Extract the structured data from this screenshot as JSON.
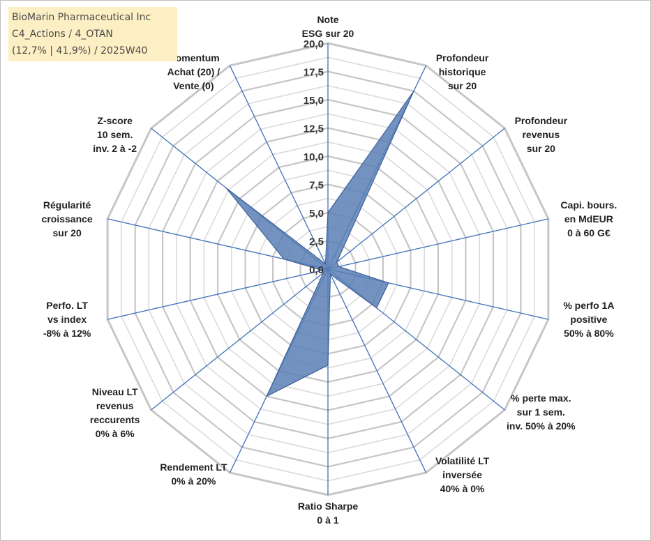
{
  "chart_data": {
    "type": "radar",
    "title_lines": [
      "BioMarin Pharmaceutical Inc",
      "C4_Actions / 4_OTAN",
      "(12,7% | 41,9%) / 2025W40"
    ],
    "axes": [
      {
        "label": [
          "Note",
          "ESG sur 20"
        ],
        "value": 5.0
      },
      {
        "label": [
          "Profondeur",
          "historique",
          "sur 20"
        ],
        "value": 17.5
      },
      {
        "label": [
          "Profondeur",
          "revenus",
          "sur 20"
        ],
        "value": 1.0
      },
      {
        "label": [
          "Capi. bours.",
          "en MdEUR",
          "0 à 60 G€"
        ],
        "value": 1.0
      },
      {
        "label": [
          "% perfo 1A",
          "positive",
          "50% à 80%"
        ],
        "value": 5.5
      },
      {
        "label": [
          "% perte max.",
          "sur 1 sem.",
          "inv. 50% à 20%"
        ],
        "value": 5.5
      },
      {
        "label": [
          "Volatilité LT",
          "inversée",
          "40% à 0%"
        ],
        "value": 0.5
      },
      {
        "label": [
          "Ratio Sharpe",
          "0 à 1"
        ],
        "value": 8.5
      },
      {
        "label": [
          "Rendement LT",
          "0% à 20%"
        ],
        "value": 12.5
      },
      {
        "label": [
          "Niveau LT",
          "revenus",
          "reccurents",
          "0% à 6%"
        ],
        "value": 0.5
      },
      {
        "label": [
          "Perfo. LT",
          "vs index",
          "-8% à 12%"
        ],
        "value": 0.5
      },
      {
        "label": [
          "Régularité",
          "croissance",
          "sur 20"
        ],
        "value": 4.0
      },
      {
        "label": [
          "Z-score",
          "10 sem.",
          "inv. 2 à -2"
        ],
        "value": 11.5
      },
      {
        "label": [
          "Momentum",
          "Achat (20) /",
          "Vente (0)"
        ],
        "value": 0.5
      }
    ],
    "rmin": 0,
    "rmax": 20,
    "ticks": [
      "0,0",
      "2,5",
      "5,0",
      "7,5",
      "10,0",
      "12,5",
      "15,0",
      "17,5",
      "20,0"
    ],
    "tick_values": [
      0,
      2.5,
      5,
      7.5,
      10,
      12.5,
      15,
      17.5,
      20
    ],
    "minor_step": 1.25,
    "colors": {
      "fill": "#5b7fb5",
      "stroke": "#3a5f9a",
      "spoke": "#3f6fb8",
      "grid_major": "#c6c6c6",
      "grid_minor": "#dadada",
      "title_bg": "#fdefc4"
    }
  }
}
